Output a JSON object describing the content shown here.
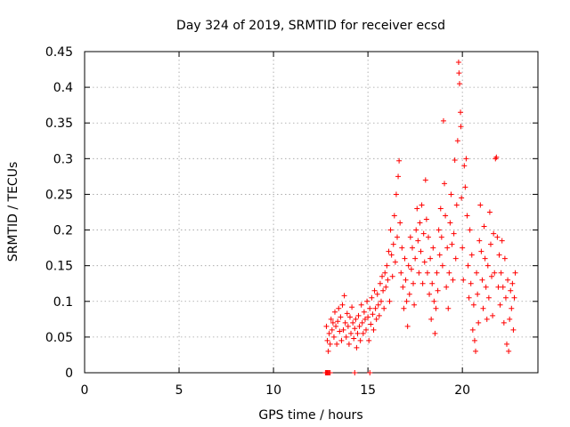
{
  "chart_data": {
    "type": "scatter",
    "title": "Day 324 of 2019, SRMTID for receiver ecsd",
    "xlabel": "GPS time / hours",
    "ylabel": "SRMTID / TECUs",
    "xlim": [
      0,
      24
    ],
    "ylim": [
      0,
      0.45
    ],
    "xticks": [
      "0",
      "5",
      "10",
      "15",
      "20"
    ],
    "yticks": [
      "0",
      "0.05",
      "0.1",
      "0.15",
      "0.2",
      "0.25",
      "0.3",
      "0.35",
      "0.4",
      "0.45"
    ],
    "grid": true,
    "marker": "+",
    "color": "#ff0000",
    "series": [
      {
        "name": "SRMTID",
        "points": [
          [
            12.75,
            0.0
          ],
          [
            12.8,
            0.0
          ],
          [
            12.85,
            0.0
          ],
          [
            12.9,
            0.0
          ],
          [
            12.95,
            0.0
          ],
          [
            13.0,
            0.0
          ],
          [
            14.3,
            0.0
          ],
          [
            15.1,
            0.0
          ],
          [
            12.8,
            0.065
          ],
          [
            12.85,
            0.045
          ],
          [
            12.9,
            0.03
          ],
          [
            12.95,
            0.055
          ],
          [
            13.0,
            0.04
          ],
          [
            13.05,
            0.075
          ],
          [
            13.1,
            0.06
          ],
          [
            13.15,
            0.07
          ],
          [
            13.2,
            0.05
          ],
          [
            13.25,
            0.085
          ],
          [
            13.3,
            0.065
          ],
          [
            13.35,
            0.04
          ],
          [
            13.4,
            0.072
          ],
          [
            13.45,
            0.09
          ],
          [
            13.5,
            0.058
          ],
          [
            13.55,
            0.078
          ],
          [
            13.6,
            0.045
          ],
          [
            13.65,
            0.095
          ],
          [
            13.7,
            0.06
          ],
          [
            13.75,
            0.108
          ],
          [
            13.8,
            0.07
          ],
          [
            13.85,
            0.05
          ],
          [
            13.9,
            0.083
          ],
          [
            13.95,
            0.065
          ],
          [
            14.0,
            0.04
          ],
          [
            14.05,
            0.078
          ],
          [
            14.1,
            0.055
          ],
          [
            14.15,
            0.092
          ],
          [
            14.2,
            0.07
          ],
          [
            14.25,
            0.048
          ],
          [
            14.3,
            0.062
          ],
          [
            14.35,
            0.075
          ],
          [
            14.4,
            0.035
          ],
          [
            14.45,
            0.055
          ],
          [
            14.5,
            0.08
          ],
          [
            14.55,
            0.065
          ],
          [
            14.6,
            0.045
          ],
          [
            14.65,
            0.095
          ],
          [
            14.7,
            0.07
          ],
          [
            14.75,
            0.055
          ],
          [
            14.8,
            0.085
          ],
          [
            14.85,
            0.075
          ],
          [
            14.9,
            0.06
          ],
          [
            14.95,
            0.1
          ],
          [
            15.0,
            0.078
          ],
          [
            15.05,
            0.045
          ],
          [
            15.1,
            0.09
          ],
          [
            15.15,
            0.068
          ],
          [
            15.2,
            0.105
          ],
          [
            15.25,
            0.082
          ],
          [
            15.3,
            0.06
          ],
          [
            15.35,
            0.115
          ],
          [
            15.4,
            0.09
          ],
          [
            15.45,
            0.075
          ],
          [
            15.5,
            0.11
          ],
          [
            15.55,
            0.095
          ],
          [
            15.6,
            0.08
          ],
          [
            15.65,
            0.125
          ],
          [
            15.7,
            0.1
          ],
          [
            15.75,
            0.135
          ],
          [
            15.8,
            0.115
          ],
          [
            15.85,
            0.09
          ],
          [
            15.9,
            0.14
          ],
          [
            15.95,
            0.12
          ],
          [
            16.0,
            0.15
          ],
          [
            16.05,
            0.13
          ],
          [
            16.1,
            0.17
          ],
          [
            16.15,
            0.1
          ],
          [
            16.2,
            0.2
          ],
          [
            16.25,
            0.165
          ],
          [
            16.3,
            0.135
          ],
          [
            16.35,
            0.18
          ],
          [
            16.4,
            0.22
          ],
          [
            16.45,
            0.155
          ],
          [
            16.5,
            0.25
          ],
          [
            16.55,
            0.19
          ],
          [
            16.6,
            0.275
          ],
          [
            16.65,
            0.297
          ],
          [
            16.7,
            0.21
          ],
          [
            16.75,
            0.14
          ],
          [
            16.8,
            0.175
          ],
          [
            16.85,
            0.12
          ],
          [
            16.9,
            0.09
          ],
          [
            16.95,
            0.16
          ],
          [
            17.0,
            0.13
          ],
          [
            17.05,
            0.1
          ],
          [
            17.1,
            0.065
          ],
          [
            17.15,
            0.15
          ],
          [
            17.2,
            0.11
          ],
          [
            17.25,
            0.19
          ],
          [
            17.3,
            0.145
          ],
          [
            17.35,
            0.175
          ],
          [
            17.4,
            0.125
          ],
          [
            17.45,
            0.095
          ],
          [
            17.5,
            0.16
          ],
          [
            17.55,
            0.2
          ],
          [
            17.6,
            0.23
          ],
          [
            17.65,
            0.185
          ],
          [
            17.7,
            0.14
          ],
          [
            17.75,
            0.21
          ],
          [
            17.8,
            0.17
          ],
          [
            17.85,
            0.235
          ],
          [
            17.9,
            0.125
          ],
          [
            17.95,
            0.195
          ],
          [
            18.0,
            0.155
          ],
          [
            18.05,
            0.27
          ],
          [
            18.1,
            0.215
          ],
          [
            18.15,
            0.14
          ],
          [
            18.2,
            0.19
          ],
          [
            18.25,
            0.11
          ],
          [
            18.3,
            0.16
          ],
          [
            18.35,
            0.075
          ],
          [
            18.4,
            0.125
          ],
          [
            18.45,
            0.175
          ],
          [
            18.5,
            0.1
          ],
          [
            18.55,
            0.055
          ],
          [
            18.6,
            0.09
          ],
          [
            18.65,
            0.14
          ],
          [
            18.7,
            0.115
          ],
          [
            18.75,
            0.2
          ],
          [
            18.8,
            0.165
          ],
          [
            18.85,
            0.23
          ],
          [
            18.9,
            0.19
          ],
          [
            18.95,
            0.15
          ],
          [
            19.0,
            0.353
          ],
          [
            19.05,
            0.265
          ],
          [
            19.1,
            0.22
          ],
          [
            19.15,
            0.12
          ],
          [
            19.2,
            0.175
          ],
          [
            19.25,
            0.09
          ],
          [
            19.3,
            0.14
          ],
          [
            19.35,
            0.21
          ],
          [
            19.4,
            0.25
          ],
          [
            19.45,
            0.18
          ],
          [
            19.5,
            0.13
          ],
          [
            19.55,
            0.195
          ],
          [
            19.6,
            0.298
          ],
          [
            19.65,
            0.16
          ],
          [
            19.7,
            0.235
          ],
          [
            19.75,
            0.325
          ],
          [
            19.8,
            0.435
          ],
          [
            19.82,
            0.42
          ],
          [
            19.85,
            0.405
          ],
          [
            19.9,
            0.365
          ],
          [
            19.92,
            0.345
          ],
          [
            19.95,
            0.245
          ],
          [
            20.0,
            0.175
          ],
          [
            20.05,
            0.13
          ],
          [
            20.1,
            0.29
          ],
          [
            20.15,
            0.26
          ],
          [
            20.2,
            0.3
          ],
          [
            20.25,
            0.22
          ],
          [
            20.3,
            0.15
          ],
          [
            20.35,
            0.105
          ],
          [
            20.4,
            0.2
          ],
          [
            20.45,
            0.125
          ],
          [
            20.5,
            0.165
          ],
          [
            20.55,
            0.06
          ],
          [
            20.6,
            0.095
          ],
          [
            20.65,
            0.045
          ],
          [
            20.7,
            0.03
          ],
          [
            20.75,
            0.14
          ],
          [
            20.8,
            0.11
          ],
          [
            20.85,
            0.07
          ],
          [
            20.9,
            0.185
          ],
          [
            20.95,
            0.235
          ],
          [
            21.0,
            0.17
          ],
          [
            21.05,
            0.13
          ],
          [
            21.1,
            0.09
          ],
          [
            21.15,
            0.205
          ],
          [
            21.2,
            0.16
          ],
          [
            21.25,
            0.12
          ],
          [
            21.3,
            0.075
          ],
          [
            21.35,
            0.15
          ],
          [
            21.4,
            0.105
          ],
          [
            21.45,
            0.225
          ],
          [
            21.5,
            0.18
          ],
          [
            21.55,
            0.135
          ],
          [
            21.6,
            0.08
          ],
          [
            21.65,
            0.195
          ],
          [
            21.7,
            0.14
          ],
          [
            21.75,
            0.3
          ],
          [
            21.8,
            0.302
          ],
          [
            21.85,
            0.19
          ],
          [
            21.9,
            0.12
          ],
          [
            21.95,
            0.165
          ],
          [
            22.0,
            0.095
          ],
          [
            22.05,
            0.14
          ],
          [
            22.1,
            0.185
          ],
          [
            22.15,
            0.12
          ],
          [
            22.2,
            0.07
          ],
          [
            22.25,
            0.16
          ],
          [
            22.3,
            0.105
          ],
          [
            22.35,
            0.04
          ],
          [
            22.4,
            0.13
          ],
          [
            22.45,
            0.03
          ],
          [
            22.5,
            0.075
          ],
          [
            22.55,
            0.115
          ],
          [
            22.6,
            0.09
          ],
          [
            22.65,
            0.125
          ],
          [
            22.7,
            0.06
          ],
          [
            22.75,
            0.105
          ],
          [
            22.8,
            0.14
          ]
        ]
      }
    ]
  }
}
